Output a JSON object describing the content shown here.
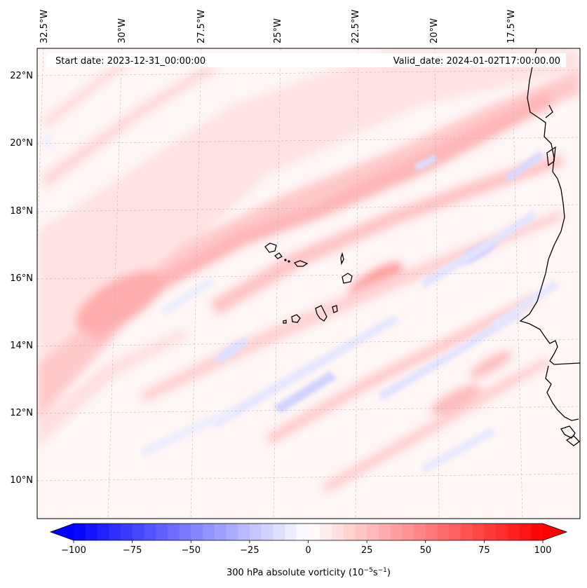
{
  "header": {
    "start_date": "Start date: 2023-12-31_00:00:00",
    "valid_date": "Valid_date: 2024-01-02T17:00:00.00"
  },
  "lon_labels": [
    "32.5°W",
    "30°W",
    "27.5°W",
    "25°W",
    "22.5°W",
    "20°W",
    "17.5°W"
  ],
  "lat_labels": [
    "22°N",
    "20°N",
    "18°N",
    "16°N",
    "14°N",
    "12°N",
    "10°N"
  ],
  "colorbar": {
    "ticks": [
      "−100",
      "−75",
      "−50",
      "−25",
      "0",
      "25",
      "50",
      "75",
      "100"
    ],
    "tick_values": [
      -100,
      -75,
      -50,
      -25,
      0,
      25,
      50,
      75,
      100
    ],
    "min": -100,
    "max": 100,
    "step": 5,
    "label_main": "300 hPa absolute vorticity (10",
    "label_exp1": "−5",
    "label_mid": "s",
    "label_exp2": "−1",
    "label_end": ")",
    "colormap": "bwr",
    "color_low": "#0000ff",
    "color_mid": "#ffffff",
    "color_high": "#ff0000"
  },
  "chart_data": {
    "type": "filled-contour-map",
    "variable": "300 hPa absolute vorticity",
    "units": "10^-5 s^-1",
    "levels_min": -100,
    "levels_max": 100,
    "level_step": 5,
    "lon_range": [
      -33,
      -15.5
    ],
    "lat_range": [
      9,
      22.8
    ]
  }
}
